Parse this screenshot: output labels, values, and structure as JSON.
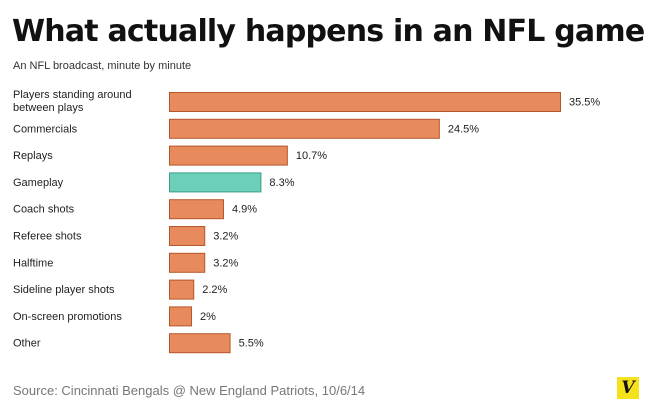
{
  "colors": {
    "bar": "#e88b5c",
    "highlight": "#6ccfb7"
  },
  "logo": {
    "glyph": "V",
    "icon": "vox-logo-icon"
  },
  "chart_data": {
    "type": "bar",
    "orientation": "horizontal",
    "title": "What actually happens in an NFL game",
    "subtitle": "An NFL broadcast, minute by minute",
    "source": "Source: Cincinnati Bengals @ New England Patriots, 10/6/14",
    "unit": "%",
    "xlim": [
      0,
      35.5
    ],
    "grid": false,
    "categories": [
      [
        "Players standing around",
        "between plays"
      ],
      [
        "Commercials"
      ],
      [
        "Replays"
      ],
      [
        "Gameplay"
      ],
      [
        "Coach shots"
      ],
      [
        "Referee shots"
      ],
      [
        "Halftime"
      ],
      [
        "Sideline player shots"
      ],
      [
        "On-screen promotions"
      ],
      [
        "Other"
      ]
    ],
    "values": [
      35.5,
      24.5,
      10.7,
      8.3,
      4.9,
      3.2,
      3.2,
      2.2,
      2,
      5.5
    ],
    "value_labels": [
      "35.5%",
      "24.5%",
      "10.7%",
      "8.3%",
      "4.9%",
      "3.2%",
      "3.2%",
      "2.2%",
      "2%",
      "5.5%"
    ],
    "highlight": "Gameplay"
  }
}
